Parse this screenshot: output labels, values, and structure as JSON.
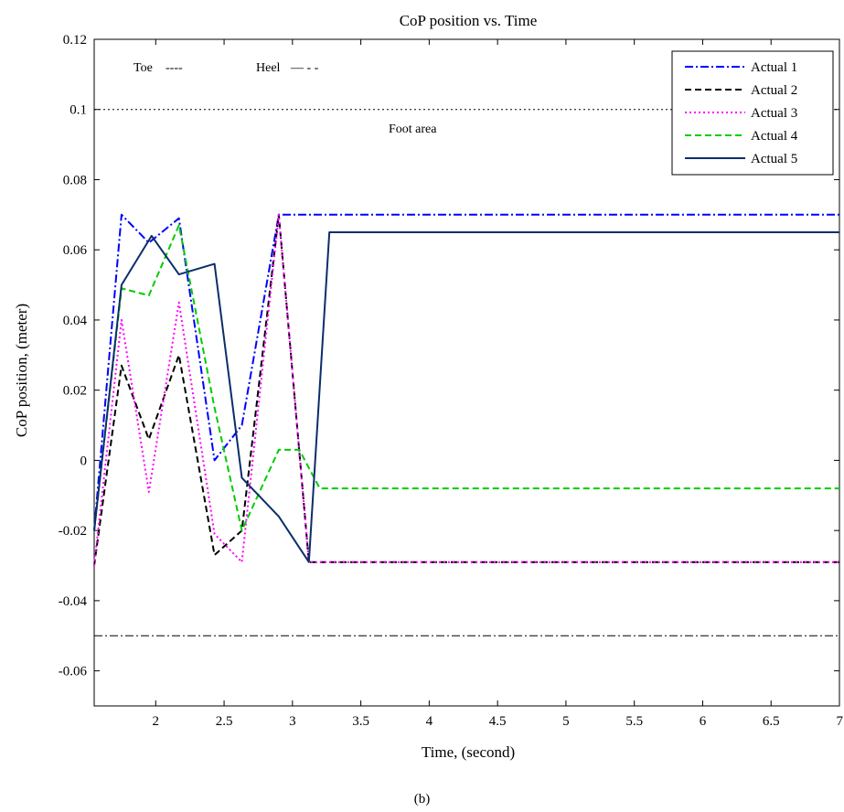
{
  "chart_data": {
    "type": "line",
    "title": "CoP position vs. Time",
    "xlabel": "Time, (second)",
    "ylabel": "CoP position, (meter)",
    "xlim": [
      1.55,
      7
    ],
    "ylim": [
      -0.07,
      0.12
    ],
    "xticks": [
      2,
      2.5,
      3,
      3.5,
      4,
      4.5,
      5,
      5.5,
      6,
      6.5,
      7
    ],
    "xtick_labels": [
      "2",
      "2.5",
      "3",
      "3.5",
      "4",
      "4.5",
      "5",
      "5.5",
      "6",
      "6.5",
      "7"
    ],
    "yticks": [
      -0.06,
      -0.04,
      -0.02,
      0,
      0.02,
      0.04,
      0.06,
      0.08,
      0.1,
      0.12
    ],
    "ytick_labels": [
      "-0.06",
      "-0.04",
      "-0.02",
      "0",
      "0.02",
      "0.04",
      "0.06",
      "0.08",
      "0.1",
      "0.12"
    ],
    "grid": false,
    "legend_position": "top-right",
    "series": [
      {
        "name": "Actual 1",
        "color": "#0000ff",
        "dash": "dashdot",
        "x": [
          1.55,
          1.75,
          1.95,
          2.17,
          2.43,
          2.63,
          2.9,
          7
        ],
        "y": [
          -0.02,
          0.07,
          0.062,
          0.069,
          0.0,
          0.01,
          0.07,
          0.07
        ]
      },
      {
        "name": "Actual 2",
        "color": "#000000",
        "dash": "dashed",
        "x": [
          1.55,
          1.75,
          1.95,
          2.17,
          2.43,
          2.63,
          2.9,
          3.12,
          7
        ],
        "y": [
          -0.03,
          0.027,
          0.006,
          0.03,
          -0.027,
          -0.02,
          0.07,
          -0.029,
          -0.029
        ]
      },
      {
        "name": "Actual 3",
        "color": "#ff00ff",
        "dash": "dotted",
        "x": [
          1.55,
          1.75,
          1.95,
          2.17,
          2.43,
          2.63,
          2.9,
          3.12,
          7
        ],
        "y": [
          -0.03,
          0.04,
          -0.009,
          0.045,
          -0.021,
          -0.029,
          0.07,
          -0.029,
          -0.029
        ]
      },
      {
        "name": "Actual 4",
        "color": "#00cc00",
        "dash": "dashed",
        "x": [
          1.55,
          1.75,
          1.95,
          2.17,
          2.43,
          2.63,
          2.9,
          3.05,
          3.2,
          7
        ],
        "y": [
          -0.02,
          0.049,
          0.047,
          0.067,
          0.015,
          -0.02,
          0.003,
          0.003,
          -0.008,
          -0.008
        ]
      },
      {
        "name": "Actual 5",
        "color": "#0b2d6b",
        "dash": "solid",
        "x": [
          1.55,
          1.75,
          1.97,
          2.17,
          2.43,
          2.63,
          2.9,
          3.12,
          3.27,
          7
        ],
        "y": [
          -0.02,
          0.05,
          0.064,
          0.053,
          0.056,
          -0.005,
          -0.016,
          -0.029,
          0.065,
          0.065
        ]
      }
    ],
    "reference_lines": [
      {
        "label": "Foot area",
        "y": 0.1,
        "color": "#000000",
        "dash": "dotted"
      },
      {
        "label": "Heel",
        "y": -0.05,
        "color": "#000000",
        "dash": "dashdot"
      }
    ],
    "annotations": {
      "toe_label": "Toe",
      "toe_marker": "----",
      "heel_label": "Heel",
      "heel_marker": "— - -",
      "foot_area_label": "Foot area"
    }
  },
  "caption": "(b)"
}
